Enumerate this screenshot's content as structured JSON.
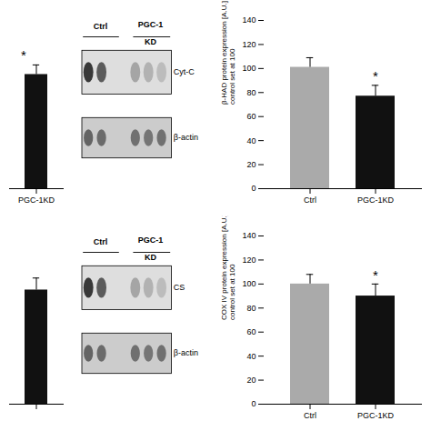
{
  "chart_data": [
    {
      "type": "bar",
      "categories": [
        "PGC-1KD"
      ],
      "values": [
        95
      ],
      "errors": [
        8
      ],
      "color": "#111111",
      "ylim": [
        0,
        140
      ],
      "tick_labels": "x",
      "annotations": [
        {
          "text": "*",
          "category": "PGC-1KD",
          "y": 107
        }
      ]
    },
    {
      "type": "blot",
      "categories": [
        "Ctrl",
        "PGC-1\nKD"
      ],
      "labels": [
        "Cyt-C",
        "β-actin"
      ]
    },
    {
      "type": "bar",
      "categories": [
        "Ctrl",
        "PGC-1KD"
      ],
      "values": [
        101,
        77
      ],
      "errors": [
        8,
        9
      ],
      "colors": [
        "#aaaaaa",
        "#111111"
      ],
      "ylabel": "β-HAD protein expression [A.U.]\ncontrol set at 100",
      "ylim": [
        0,
        140
      ],
      "yticks": [
        0,
        20,
        40,
        60,
        80,
        100,
        120,
        140
      ],
      "annotations": [
        {
          "text": "*",
          "category": "PGC-1KD",
          "y": 90
        }
      ]
    },
    {
      "type": "bar",
      "categories": [
        null
      ],
      "values": [
        95
      ],
      "errors": [
        10
      ],
      "color": "#111111",
      "ylim": [
        0,
        140
      ],
      "tick_labels": "x"
    },
    {
      "type": "blot",
      "categories": [
        "Ctrl",
        "PGC-1\nKD"
      ],
      "labels": [
        "CS",
        "β-actin"
      ]
    },
    {
      "type": "bar",
      "categories": [
        "Ctrl",
        "PGC-1KD"
      ],
      "values": [
        100,
        90
      ],
      "errors": [
        8,
        10
      ],
      "colors": [
        "#aaaaaa",
        "#111111"
      ],
      "ylabel": "COX IV protein expression [A.U.]\ncontrol set at 100",
      "ylim": [
        0,
        140
      ],
      "yticks": [
        0,
        20,
        40,
        60,
        80,
        100,
        120,
        140
      ],
      "annotations": [
        {
          "text": "*",
          "category": "PGC-1KD",
          "y": 103
        }
      ]
    }
  ]
}
